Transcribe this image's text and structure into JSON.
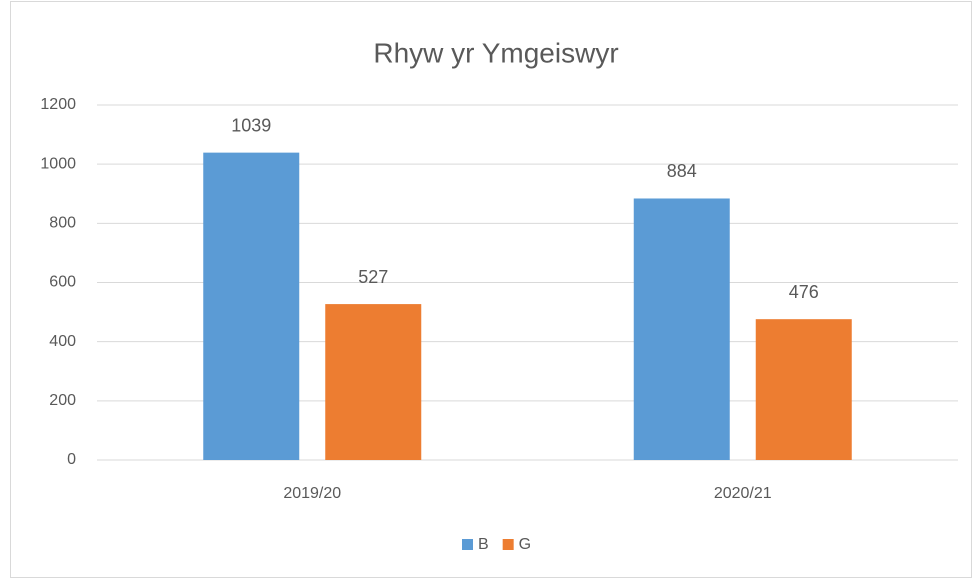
{
  "chart_data": {
    "type": "bar",
    "title": "Rhyw yr Ymgeiswyr",
    "categories": [
      "2019/20",
      "2020/21"
    ],
    "series": [
      {
        "name": "B",
        "color": "#5b9bd5",
        "values": [
          1039,
          884
        ]
      },
      {
        "name": "G",
        "color": "#ed7d31",
        "values": [
          527,
          476
        ]
      }
    ],
    "ylim": [
      0,
      1200
    ],
    "yticks": [
      0,
      200,
      400,
      600,
      800,
      1000,
      1200
    ],
    "grid": true,
    "legend": "bottom"
  }
}
